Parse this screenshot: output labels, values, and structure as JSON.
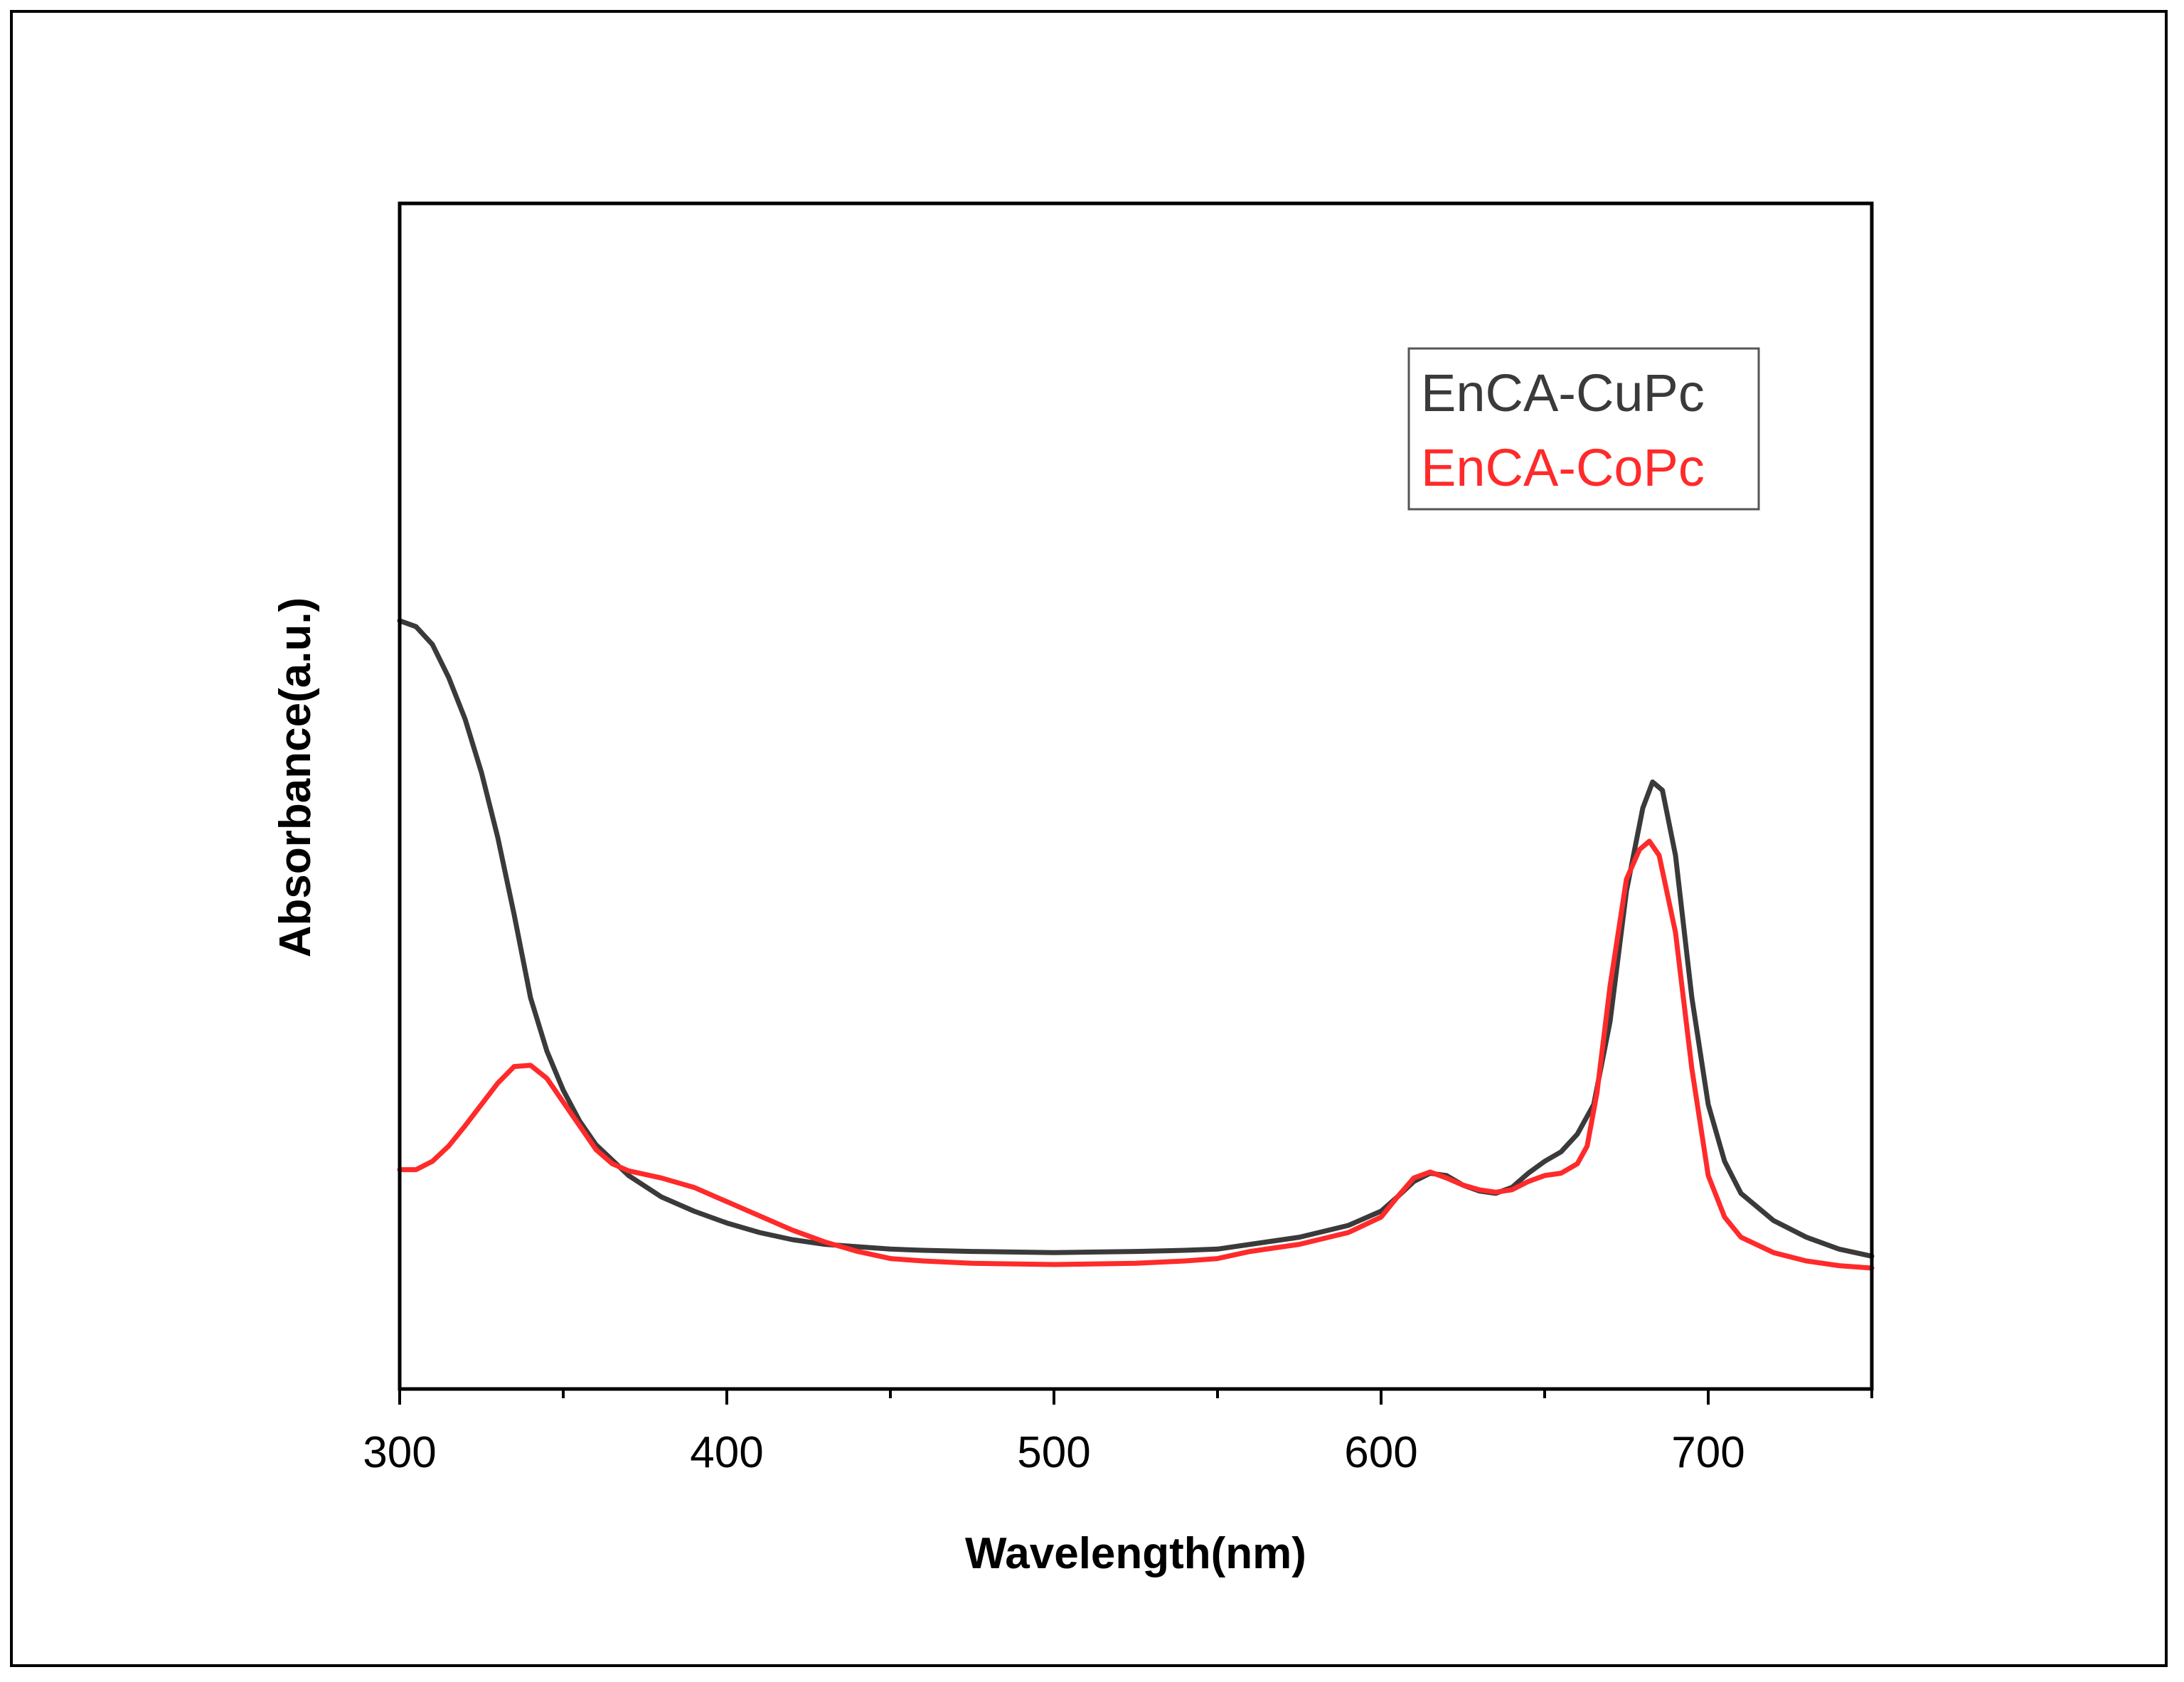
{
  "chart_data": {
    "type": "line",
    "title": "",
    "xlabel": "Wavelength(nm)",
    "ylabel": "Absorbance(a.u.)",
    "xlim": [
      300,
      750
    ],
    "ylim": [
      0,
      1
    ],
    "x_ticks": [
      300,
      400,
      500,
      600,
      700
    ],
    "minor_step": 50,
    "y_tick_labels": false,
    "grid": false,
    "legend_position": "top-right",
    "series": [
      {
        "name": "EnCA-CuPc",
        "color": "#3a3a3a",
        "points": [
          [
            300,
            0.648
          ],
          [
            305,
            0.643
          ],
          [
            310,
            0.628
          ],
          [
            315,
            0.6
          ],
          [
            320,
            0.565
          ],
          [
            325,
            0.52
          ],
          [
            330,
            0.465
          ],
          [
            335,
            0.4
          ],
          [
            340,
            0.33
          ],
          [
            345,
            0.285
          ],
          [
            350,
            0.252
          ],
          [
            355,
            0.226
          ],
          [
            360,
            0.206
          ],
          [
            370,
            0.18
          ],
          [
            380,
            0.162
          ],
          [
            390,
            0.15
          ],
          [
            400,
            0.14
          ],
          [
            410,
            0.132
          ],
          [
            420,
            0.126
          ],
          [
            430,
            0.122
          ],
          [
            440,
            0.12
          ],
          [
            450,
            0.118
          ],
          [
            460,
            0.117
          ],
          [
            475,
            0.116
          ],
          [
            500,
            0.115
          ],
          [
            525,
            0.116
          ],
          [
            540,
            0.117
          ],
          [
            550,
            0.118
          ],
          [
            560,
            0.122
          ],
          [
            575,
            0.128
          ],
          [
            590,
            0.138
          ],
          [
            600,
            0.15
          ],
          [
            605,
            0.162
          ],
          [
            610,
            0.175
          ],
          [
            615,
            0.182
          ],
          [
            620,
            0.18
          ],
          [
            625,
            0.172
          ],
          [
            630,
            0.167
          ],
          [
            635,
            0.165
          ],
          [
            640,
            0.17
          ],
          [
            645,
            0.182
          ],
          [
            650,
            0.192
          ],
          [
            655,
            0.2
          ],
          [
            660,
            0.215
          ],
          [
            665,
            0.24
          ],
          [
            670,
            0.31
          ],
          [
            675,
            0.42
          ],
          [
            680,
            0.49
          ],
          [
            683,
            0.512
          ],
          [
            686,
            0.505
          ],
          [
            690,
            0.45
          ],
          [
            695,
            0.33
          ],
          [
            700,
            0.24
          ],
          [
            705,
            0.192
          ],
          [
            710,
            0.165
          ],
          [
            720,
            0.142
          ],
          [
            730,
            0.128
          ],
          [
            740,
            0.118
          ],
          [
            750,
            0.112
          ]
        ]
      },
      {
        "name": "EnCA-CoPc",
        "color": "#ff2a2a",
        "points": [
          [
            300,
            0.185
          ],
          [
            305,
            0.185
          ],
          [
            310,
            0.192
          ],
          [
            315,
            0.205
          ],
          [
            320,
            0.222
          ],
          [
            325,
            0.24
          ],
          [
            330,
            0.258
          ],
          [
            335,
            0.272
          ],
          [
            340,
            0.273
          ],
          [
            345,
            0.262
          ],
          [
            350,
            0.242
          ],
          [
            355,
            0.222
          ],
          [
            360,
            0.202
          ],
          [
            365,
            0.19
          ],
          [
            370,
            0.184
          ],
          [
            380,
            0.178
          ],
          [
            390,
            0.17
          ],
          [
            400,
            0.158
          ],
          [
            410,
            0.146
          ],
          [
            420,
            0.134
          ],
          [
            430,
            0.124
          ],
          [
            440,
            0.116
          ],
          [
            450,
            0.11
          ],
          [
            460,
            0.108
          ],
          [
            475,
            0.106
          ],
          [
            500,
            0.105
          ],
          [
            525,
            0.106
          ],
          [
            540,
            0.108
          ],
          [
            550,
            0.11
          ],
          [
            560,
            0.116
          ],
          [
            575,
            0.122
          ],
          [
            590,
            0.132
          ],
          [
            600,
            0.145
          ],
          [
            605,
            0.162
          ],
          [
            610,
            0.178
          ],
          [
            615,
            0.183
          ],
          [
            620,
            0.178
          ],
          [
            625,
            0.172
          ],
          [
            630,
            0.168
          ],
          [
            635,
            0.166
          ],
          [
            640,
            0.168
          ],
          [
            645,
            0.175
          ],
          [
            650,
            0.18
          ],
          [
            655,
            0.182
          ],
          [
            660,
            0.19
          ],
          [
            663,
            0.205
          ],
          [
            666,
            0.25
          ],
          [
            670,
            0.34
          ],
          [
            675,
            0.43
          ],
          [
            679,
            0.455
          ],
          [
            682,
            0.462
          ],
          [
            685,
            0.45
          ],
          [
            690,
            0.385
          ],
          [
            695,
            0.27
          ],
          [
            700,
            0.18
          ],
          [
            705,
            0.145
          ],
          [
            710,
            0.128
          ],
          [
            720,
            0.115
          ],
          [
            730,
            0.108
          ],
          [
            740,
            0.104
          ],
          [
            750,
            0.102
          ]
        ]
      }
    ]
  }
}
